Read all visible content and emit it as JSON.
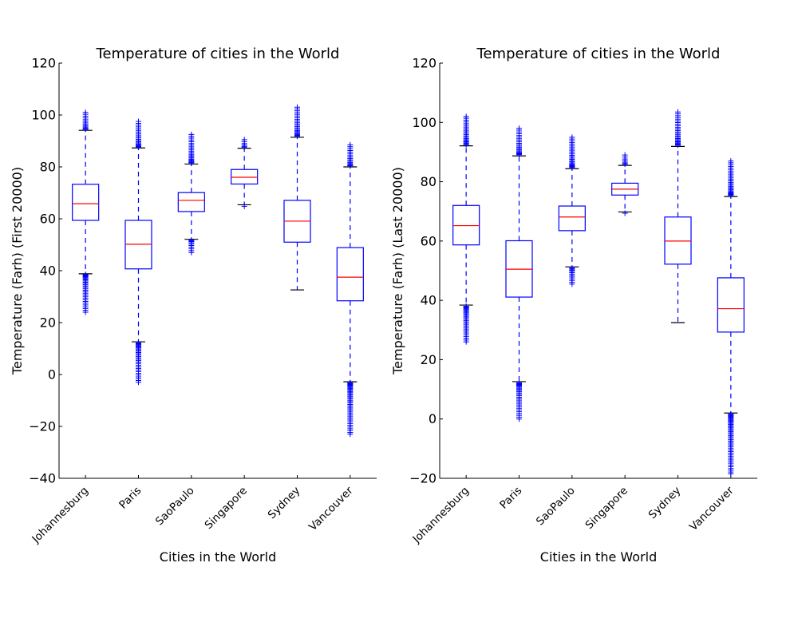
{
  "chart_data": [
    {
      "type": "boxplot",
      "title": "Temperature of cities in the World",
      "xlabel": "Cities in the World",
      "ylabel": "Temperature (Farh) (First 20000)",
      "ylim": [
        -40,
        120
      ],
      "yticks": [
        -40,
        -20,
        0,
        20,
        40,
        60,
        80,
        100,
        120
      ],
      "grid": false,
      "box_color": "#0000ff",
      "median_color": "#ff0000",
      "categories": [
        "Johannesburg",
        "Paris",
        "SaoPaulo",
        "Singapore",
        "Sydney",
        "Vancouver"
      ],
      "boxes": [
        {
          "name": "Johannesburg",
          "whisker_low": 38.8,
          "q1": 59.4,
          "median": 65.8,
          "q3": 73.3,
          "whisker_high": 94.1,
          "outliers_low_range": [
            24,
            38.5
          ],
          "outliers_high_range": [
            94.5,
            101
          ]
        },
        {
          "name": "Paris",
          "whisker_low": 12.6,
          "q1": 40.7,
          "median": 50.2,
          "q3": 59.4,
          "whisker_high": 87.3,
          "outliers_low_range": [
            -3,
            12.2
          ],
          "outliers_high_range": [
            87.7,
            97.5
          ]
        },
        {
          "name": "SaoPaulo",
          "whisker_low": 52.1,
          "q1": 62.8,
          "median": 67.1,
          "q3": 70.1,
          "whisker_high": 81.1,
          "outliers_low_range": [
            47,
            51.8
          ],
          "outliers_high_range": [
            81.5,
            92.5
          ]
        },
        {
          "name": "Singapore",
          "whisker_low": 65.4,
          "q1": 73.4,
          "median": 76.0,
          "q3": 79.0,
          "whisker_high": 87.2,
          "outliers_low_range": [
            64.8,
            64.8
          ],
          "outliers_high_range": [
            87.6,
            90.5
          ]
        },
        {
          "name": "Sydney",
          "whisker_low": 32.6,
          "q1": 51.0,
          "median": 59.1,
          "q3": 67.1,
          "whisker_high": 91.4,
          "outliers_low_range": null,
          "outliers_high_range": [
            91.8,
            103
          ]
        },
        {
          "name": "Vancouver",
          "whisker_low": -2.8,
          "q1": 28.4,
          "median": 37.5,
          "q3": 48.9,
          "whisker_high": 80.0,
          "outliers_low_range": [
            -23,
            -3.2
          ],
          "outliers_high_range": [
            80.4,
            88.5
          ]
        }
      ]
    },
    {
      "type": "boxplot",
      "title": "Temperature of cities in the World",
      "xlabel": "Cities in the World",
      "ylabel": "Temperature (Farh) (Last 20000)",
      "ylim": [
        -20,
        120
      ],
      "yticks": [
        -20,
        0,
        20,
        40,
        60,
        80,
        100,
        120
      ],
      "grid": false,
      "box_color": "#0000ff",
      "median_color": "#ff0000",
      "categories": [
        "Johannesburg",
        "Paris",
        "SaoPaulo",
        "Singapore",
        "Sydney",
        "Vancouver"
      ],
      "boxes": [
        {
          "name": "Johannesburg",
          "whisker_low": 38.4,
          "q1": 58.7,
          "median": 65.2,
          "q3": 72.0,
          "whisker_high": 92.1,
          "outliers_low_range": [
            26,
            38.0
          ],
          "outliers_high_range": [
            92.5,
            102
          ]
        },
        {
          "name": "Paris",
          "whisker_low": 12.6,
          "q1": 41.1,
          "median": 50.5,
          "q3": 60.1,
          "whisker_high": 88.7,
          "outliers_low_range": [
            0,
            12.2
          ],
          "outliers_high_range": [
            89.1,
            98
          ]
        },
        {
          "name": "SaoPaulo",
          "whisker_low": 51.3,
          "q1": 63.5,
          "median": 68.1,
          "q3": 71.8,
          "whisker_high": 84.4,
          "outliers_low_range": [
            45.5,
            50.9
          ],
          "outliers_high_range": [
            84.8,
            95
          ]
        },
        {
          "name": "Singapore",
          "whisker_low": 69.8,
          "q1": 75.5,
          "median": 77.5,
          "q3": 79.5,
          "whisker_high": 85.5,
          "outliers_low_range": [
            69.4,
            69.4
          ],
          "outliers_high_range": [
            85.9,
            89
          ]
        },
        {
          "name": "Sydney",
          "whisker_low": 32.5,
          "q1": 52.2,
          "median": 60.0,
          "q3": 68.1,
          "whisker_high": 91.9,
          "outliers_low_range": null,
          "outliers_high_range": [
            92.3,
            103.5
          ]
        },
        {
          "name": "Vancouver",
          "whisker_low": 2.0,
          "q1": 29.3,
          "median": 37.2,
          "q3": 47.6,
          "whisker_high": 75.0,
          "outliers_low_range": [
            -18.5,
            1.6
          ],
          "outliers_high_range": [
            75.4,
            87
          ]
        }
      ]
    }
  ]
}
